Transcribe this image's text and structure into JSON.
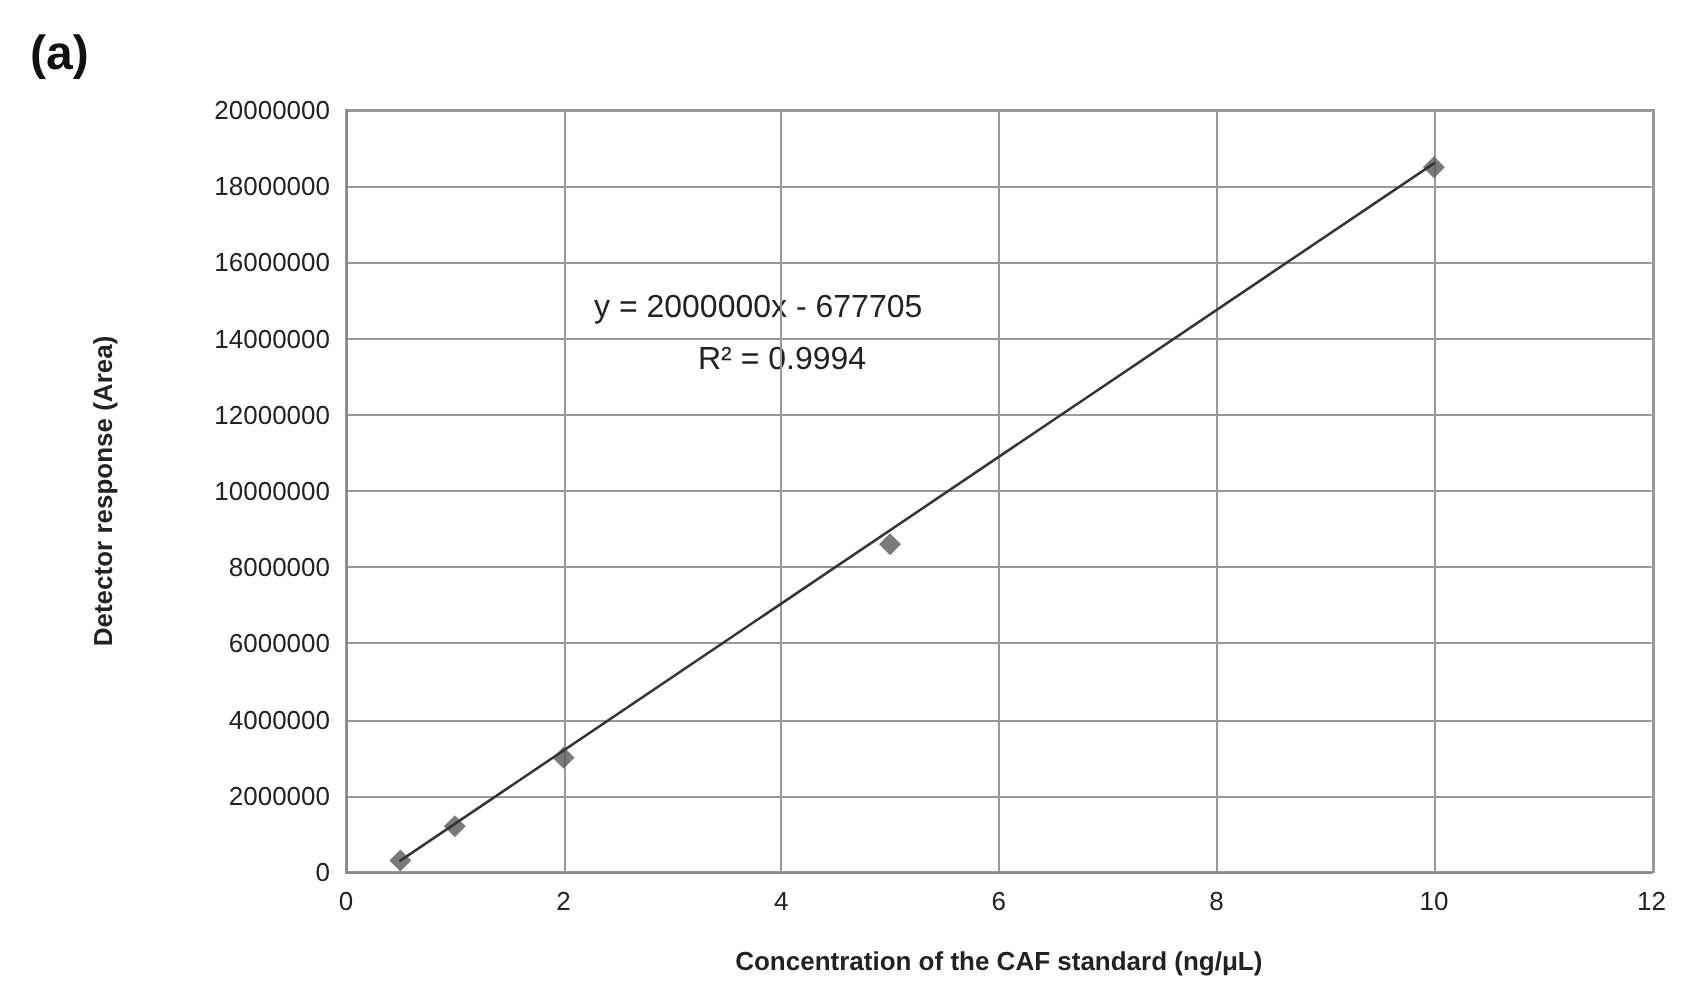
{
  "chart_data": {
    "type": "scatter",
    "title": "(a)",
    "xlabel": "Concentration of the CAF standard (ng/μL)",
    "ylabel": "Detector response (Area)",
    "annotations": [
      "y = 2000000x - 677705",
      "R² = 0.9994"
    ],
    "series": [
      {
        "color": "#595959",
        "marker": "diamond",
        "x": [
          0.5,
          1,
          2,
          5,
          10
        ],
        "values": [
          300000,
          1200000,
          3000000,
          8600000,
          18500000
        ]
      },
      {
        "type": "line",
        "color": "#333333",
        "marker": "none",
        "line_style": "solid",
        "x": [
          0.5,
          10
        ],
        "values": [
          300000,
          18600000
        ]
      }
    ],
    "xlim": [
      0,
      12
    ],
    "xticks": [
      0,
      2,
      4,
      6,
      8,
      10,
      12
    ],
    "ylim": [
      0,
      20000000
    ],
    "yticks": [
      0,
      2000000,
      4000000,
      6000000,
      8000000,
      10000000,
      12000000,
      14000000,
      16000000,
      18000000,
      20000000
    ],
    "grid": true
  }
}
